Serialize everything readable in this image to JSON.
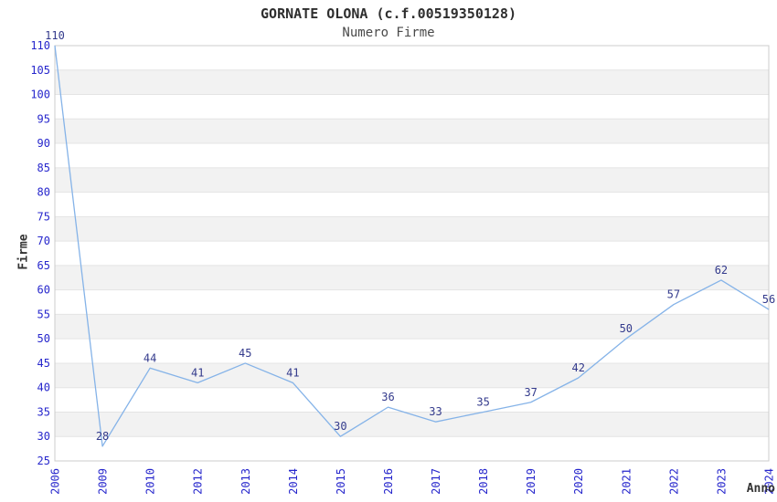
{
  "chart_data": {
    "type": "line",
    "title": "GORNATE OLONA (c.f.00519350128)",
    "subtitle": "Numero Firme",
    "xlabel": "Anno",
    "ylabel": "Firme",
    "categories": [
      "2006",
      "2009",
      "2010",
      "2012",
      "2013",
      "2014",
      "2015",
      "2016",
      "2017",
      "2018",
      "2019",
      "2020",
      "2021",
      "2022",
      "2023",
      "2024"
    ],
    "values": [
      110,
      28,
      44,
      41,
      45,
      41,
      30,
      36,
      33,
      35,
      37,
      42,
      50,
      57,
      62,
      56
    ],
    "data_labels_visible": true,
    "ylim": [
      25,
      110
    ],
    "ytick_step": 5,
    "yticks": [
      25,
      30,
      35,
      40,
      45,
      50,
      55,
      60,
      65,
      70,
      75,
      80,
      85,
      90,
      95,
      100,
      105,
      110
    ],
    "grid": true,
    "legend": "none",
    "band_pattern": "alternating-horizontal",
    "colors": {
      "line": "#85b3e8",
      "tick_label": "#2626cc",
      "data_label": "#333a8c",
      "band": "#f2f2f2",
      "grid_line": "#e4e4e4",
      "axis_border": "#cccccc",
      "title": "#2e2e2e",
      "subtitle": "#4a4a4a",
      "axis_title": "#333333",
      "background": "#ffffff"
    }
  }
}
